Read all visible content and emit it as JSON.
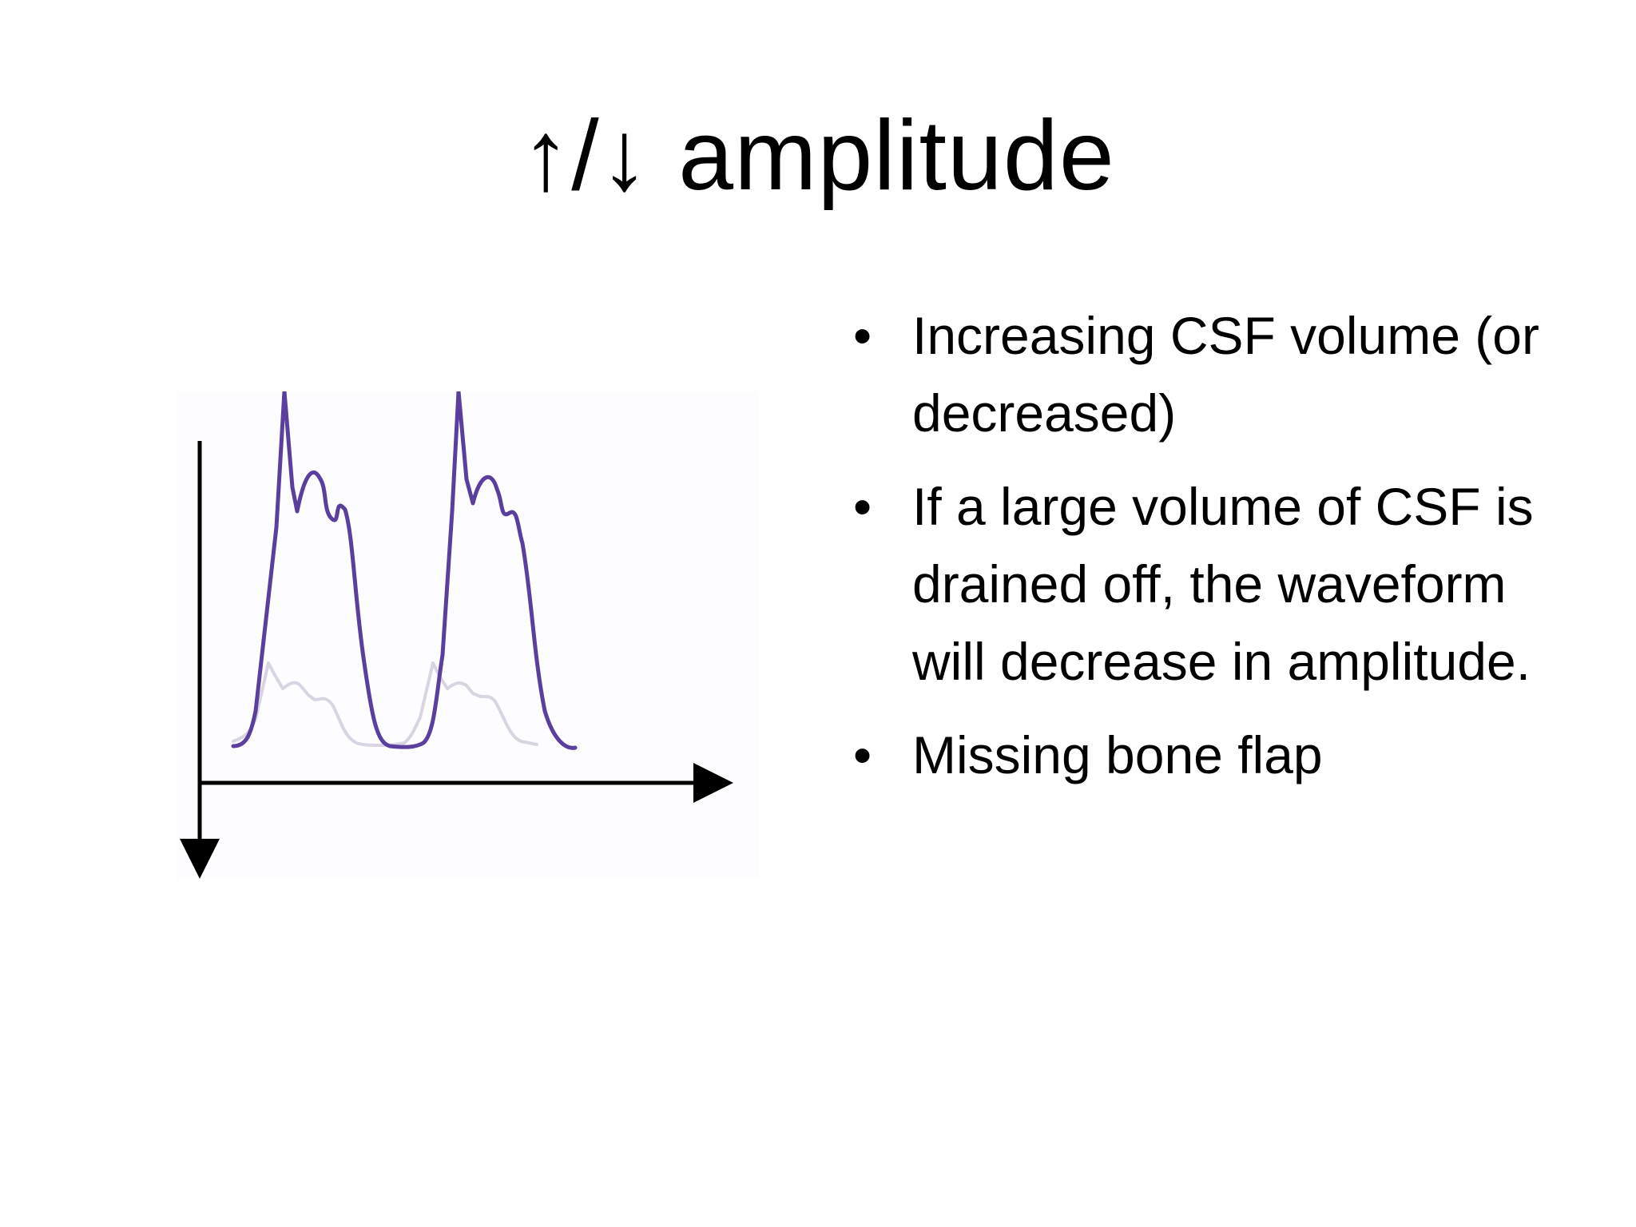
{
  "slide": {
    "title": "↑/↓ amplitude",
    "bullets": [
      "Increasing CSF volume (or decreased)",
      "If a large volume of CSF is drained off, the waveform will decrease in amplitude.",
      "Missing bone flap"
    ],
    "bullet_glyph": "•"
  },
  "figure": {
    "colors": {
      "high_waveform": "#5b3f9e",
      "low_waveform": "#d9d4e2",
      "axes": "#000000"
    }
  }
}
